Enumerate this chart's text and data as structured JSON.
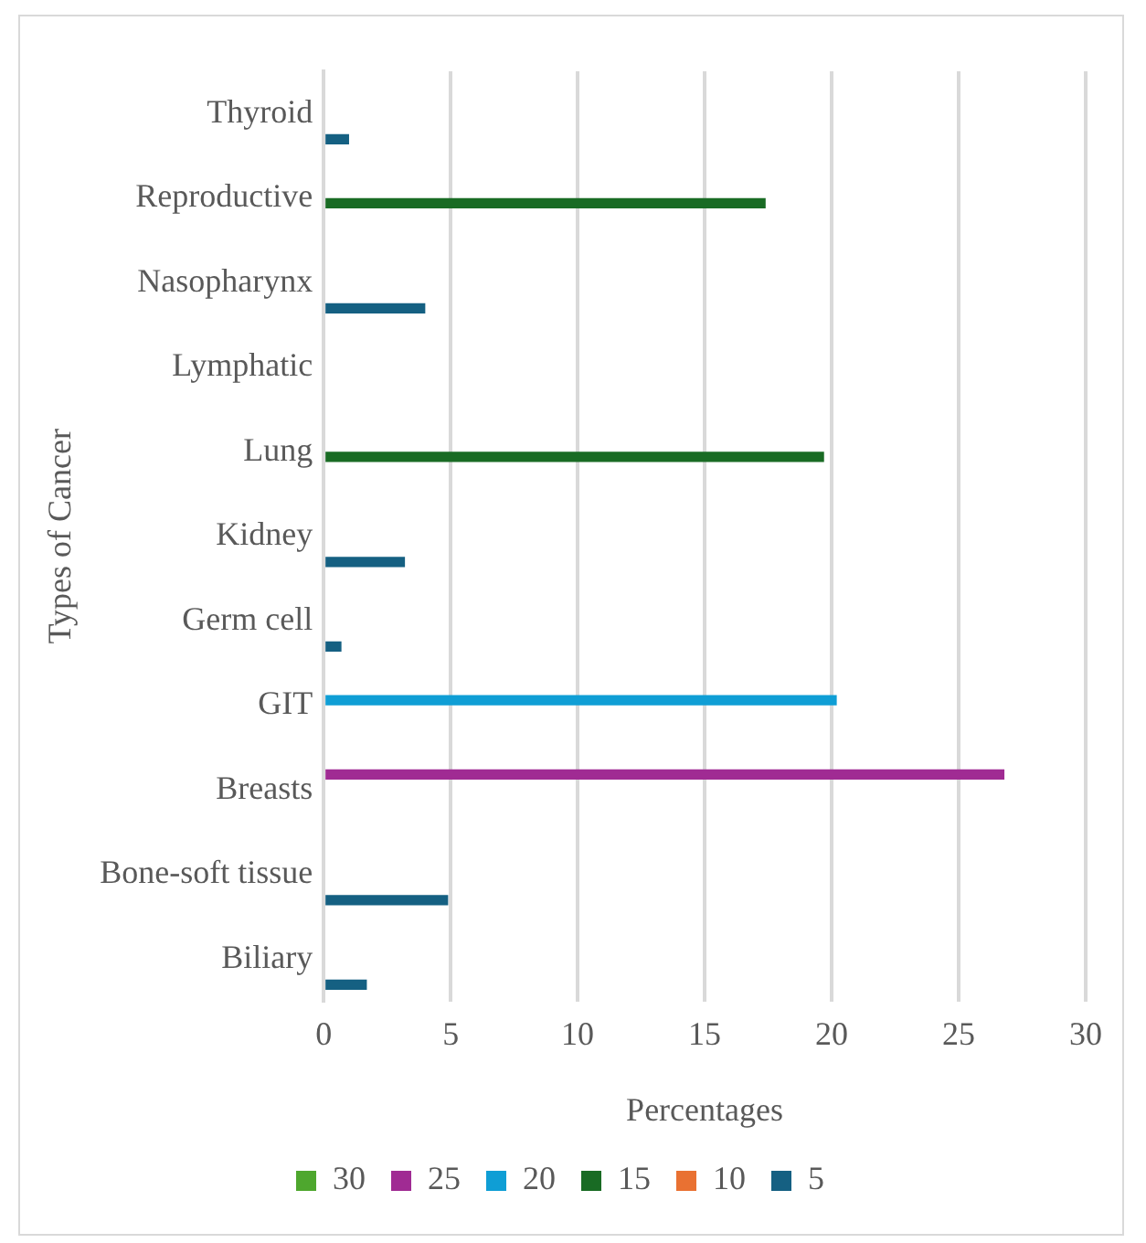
{
  "chart_data": {
    "type": "bar",
    "orientation": "horizontal",
    "xlabel": "Percentages",
    "ylabel": "Types of Cancer",
    "categories": [
      "Thyroid",
      "Reproductive",
      "Nasopharynx",
      "Lymphatic",
      "Lung",
      "Kidney",
      "Germ cell",
      "GIT",
      "Breasts",
      "Bone-soft tissue",
      "Biliary"
    ],
    "series": [
      {
        "name": "30",
        "color": "#4ea72e",
        "values": [
          null,
          null,
          null,
          null,
          null,
          null,
          null,
          null,
          null,
          null,
          null
        ]
      },
      {
        "name": "25",
        "color": "#a02b93",
        "values": [
          null,
          null,
          null,
          null,
          null,
          null,
          null,
          null,
          26.8,
          null,
          null
        ]
      },
      {
        "name": "20",
        "color": "#0f9ed5",
        "values": [
          null,
          null,
          null,
          null,
          null,
          null,
          null,
          20.2,
          null,
          null,
          null
        ]
      },
      {
        "name": "15",
        "color": "#196b24",
        "values": [
          null,
          17.4,
          null,
          null,
          19.7,
          null,
          null,
          null,
          null,
          null,
          null
        ]
      },
      {
        "name": "10",
        "color": "#e97132",
        "values": [
          null,
          null,
          null,
          null,
          null,
          null,
          null,
          null,
          null,
          null,
          null
        ]
      },
      {
        "name": "5",
        "color": "#156082",
        "values": [
          1.0,
          null,
          4.0,
          null,
          null,
          3.2,
          0.7,
          null,
          null,
          4.9,
          1.7
        ]
      }
    ],
    "xlim": [
      0,
      30
    ],
    "xticks": [
      0,
      5,
      10,
      15,
      20,
      25,
      30
    ],
    "grid": "x",
    "legend": "bottom"
  }
}
